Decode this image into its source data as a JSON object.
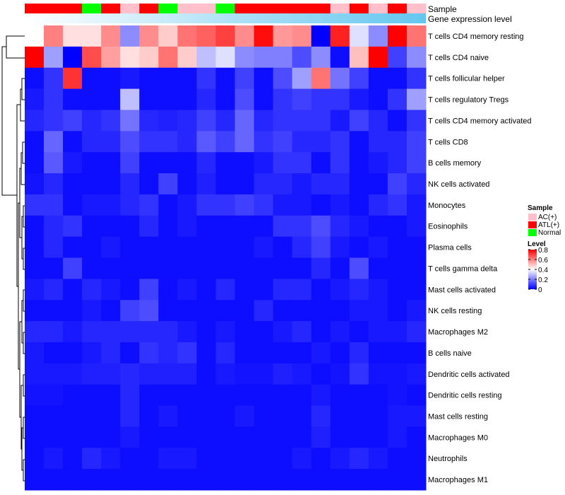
{
  "chart_data": {
    "type": "heatmap",
    "annotation_labels": {
      "sample": "Sample",
      "expression": "Gene expression level"
    },
    "sample_groups": [
      "ATL(+)",
      "ATL(+)",
      "ATL(+)",
      "Normal",
      "ATL(+)",
      "AC(+)",
      "ATL(+)",
      "Normal",
      "AC(+)",
      "AC(+)",
      "Normal",
      "ATL(+)",
      "ATL(+)",
      "ATL(+)",
      "ATL(+)",
      "ATL(+)",
      "AC(+)",
      "ATL(+)",
      "AC(+)",
      "ATL(+)",
      "AC(+)"
    ],
    "group_colors": {
      "AC(+)": "#FFC0CB",
      "ATL(+)": "#FF0000",
      "Normal": "#00FF00"
    },
    "expression_colors": {
      "start": "#FFFFFF",
      "end": "#63C6EF"
    },
    "rows": [
      {
        "label": "T cells CD4 memory resting",
        "values": [
          0.4,
          0.6,
          0.45,
          0.45,
          0.58,
          0.22,
          0.58,
          0.48,
          0.62,
          0.65,
          0.7,
          0.58,
          0.78,
          0.56,
          0.58,
          0.0,
          0.75,
          0.35,
          0.22,
          0.8,
          0.62
        ]
      },
      {
        "label": "T cells CD4 naive",
        "values": [
          0.8,
          0.25,
          0.0,
          0.68,
          0.55,
          0.45,
          0.48,
          0.62,
          0.48,
          0.3,
          0.35,
          0.22,
          0.2,
          0.2,
          0.12,
          0.22,
          0.02,
          0.5,
          0.8,
          0.1,
          0.22
        ]
      },
      {
        "label": "T cells follicular helper",
        "values": [
          0.02,
          0.08,
          0.72,
          0.02,
          0.02,
          0.04,
          0.02,
          0.02,
          0.02,
          0.08,
          0.02,
          0.1,
          0.02,
          0.12,
          0.25,
          0.62,
          0.18,
          0.1,
          0.02,
          0.02,
          0.08
        ]
      },
      {
        "label": "T cells regulatory  Tregs",
        "values": [
          0.04,
          0.08,
          0.02,
          0.02,
          0.02,
          0.3,
          0.02,
          0.02,
          0.02,
          0.06,
          0.02,
          0.12,
          0.02,
          0.08,
          0.1,
          0.08,
          0.08,
          0.04,
          0.02,
          0.08,
          0.25
        ]
      },
      {
        "label": "T cells CD4 memory activated",
        "values": [
          0.06,
          0.08,
          0.1,
          0.06,
          0.08,
          0.18,
          0.06,
          0.05,
          0.06,
          0.1,
          0.06,
          0.16,
          0.06,
          0.08,
          0.08,
          0.08,
          0.04,
          0.1,
          0.06,
          0.02,
          0.08
        ]
      },
      {
        "label": "T cells CD8",
        "values": [
          0.02,
          0.16,
          0.02,
          0.06,
          0.06,
          0.12,
          0.08,
          0.08,
          0.06,
          0.14,
          0.1,
          0.16,
          0.08,
          0.1,
          0.06,
          0.06,
          0.08,
          0.02,
          0.06,
          0.06,
          0.1
        ]
      },
      {
        "label": "B cells memory",
        "values": [
          0.02,
          0.14,
          0.04,
          0.02,
          0.02,
          0.1,
          0.02,
          0.02,
          0.02,
          0.06,
          0.02,
          0.02,
          0.04,
          0.08,
          0.08,
          0.02,
          0.08,
          0.02,
          0.04,
          0.06,
          0.1
        ]
      },
      {
        "label": "NK cells activated",
        "values": [
          0.03,
          0.06,
          0.02,
          0.02,
          0.02,
          0.06,
          0.02,
          0.1,
          0.02,
          0.05,
          0.02,
          0.02,
          0.06,
          0.06,
          0.04,
          0.06,
          0.06,
          0.02,
          0.02,
          0.1,
          0.06
        ]
      },
      {
        "label": "Monocytes",
        "values": [
          0.08,
          0.08,
          0.02,
          0.04,
          0.04,
          0.06,
          0.08,
          0.02,
          0.04,
          0.08,
          0.08,
          0.1,
          0.08,
          0.04,
          0.04,
          0.02,
          0.04,
          0.02,
          0.06,
          0.08,
          0.04
        ]
      },
      {
        "label": "Eosinophils",
        "values": [
          0.02,
          0.06,
          0.08,
          0.02,
          0.02,
          0.02,
          0.06,
          0.02,
          0.04,
          0.02,
          0.02,
          0.02,
          0.02,
          0.08,
          0.08,
          0.12,
          0.06,
          0.04,
          0.02,
          0.02,
          0.04
        ]
      },
      {
        "label": "Plasma cells",
        "values": [
          0.02,
          0.06,
          0.02,
          0.02,
          0.04,
          0.02,
          0.02,
          0.02,
          0.02,
          0.02,
          0.02,
          0.02,
          0.04,
          0.02,
          0.06,
          0.1,
          0.04,
          0.02,
          0.04,
          0.02,
          0.02
        ]
      },
      {
        "label": "T cells gamma delta",
        "values": [
          0.02,
          0.02,
          0.1,
          0.02,
          0.02,
          0.02,
          0.02,
          0.02,
          0.02,
          0.02,
          0.02,
          0.02,
          0.02,
          0.02,
          0.02,
          0.06,
          0.02,
          0.12,
          0.02,
          0.02,
          0.02
        ]
      },
      {
        "label": "Mast cells activated",
        "values": [
          0.04,
          0.06,
          0.02,
          0.06,
          0.04,
          0.02,
          0.1,
          0.02,
          0.04,
          0.02,
          0.06,
          0.02,
          0.02,
          0.06,
          0.06,
          0.02,
          0.04,
          0.06,
          0.04,
          0.02,
          0.02
        ]
      },
      {
        "label": "NK cells resting",
        "values": [
          0.02,
          0.02,
          0.02,
          0.04,
          0.02,
          0.1,
          0.12,
          0.02,
          0.02,
          0.02,
          0.02,
          0.02,
          0.06,
          0.02,
          0.02,
          0.02,
          0.02,
          0.04,
          0.04,
          0.02,
          0.04
        ]
      },
      {
        "label": "Macrophages M2",
        "values": [
          0.06,
          0.06,
          0.04,
          0.06,
          0.06,
          0.06,
          0.06,
          0.06,
          0.04,
          0.02,
          0.04,
          0.02,
          0.02,
          0.04,
          0.06,
          0.02,
          0.04,
          0.02,
          0.04,
          0.04,
          0.06
        ]
      },
      {
        "label": "B cells naive",
        "values": [
          0.04,
          0.02,
          0.02,
          0.04,
          0.06,
          0.02,
          0.08,
          0.06,
          0.08,
          0.02,
          0.06,
          0.02,
          0.02,
          0.02,
          0.02,
          0.04,
          0.02,
          0.06,
          0.02,
          0.02,
          0.02
        ]
      },
      {
        "label": "Dendritic cells activated",
        "values": [
          0.04,
          0.04,
          0.04,
          0.05,
          0.05,
          0.06,
          0.05,
          0.05,
          0.05,
          0.02,
          0.04,
          0.03,
          0.03,
          0.05,
          0.04,
          0.02,
          0.03,
          0.08,
          0.03,
          0.03,
          0.04
        ]
      },
      {
        "label": "Dendritic cells resting",
        "values": [
          0.03,
          0.03,
          0.02,
          0.02,
          0.02,
          0.06,
          0.02,
          0.02,
          0.02,
          0.02,
          0.02,
          0.02,
          0.02,
          0.02,
          0.02,
          0.04,
          0.02,
          0.02,
          0.02,
          0.03,
          0.02
        ]
      },
      {
        "label": "Mast cells resting",
        "values": [
          0.02,
          0.02,
          0.02,
          0.02,
          0.02,
          0.06,
          0.02,
          0.04,
          0.02,
          0.02,
          0.02,
          0.04,
          0.02,
          0.02,
          0.02,
          0.06,
          0.02,
          0.02,
          0.02,
          0.04,
          0.04
        ]
      },
      {
        "label": "Macrophages M0",
        "values": [
          0.02,
          0.02,
          0.02,
          0.02,
          0.02,
          0.04,
          0.02,
          0.02,
          0.02,
          0.02,
          0.02,
          0.02,
          0.02,
          0.02,
          0.02,
          0.05,
          0.02,
          0.02,
          0.02,
          0.04,
          0.02
        ]
      },
      {
        "label": "Neutrophils",
        "values": [
          0.02,
          0.04,
          0.02,
          0.06,
          0.04,
          0.02,
          0.02,
          0.04,
          0.04,
          0.02,
          0.02,
          0.02,
          0.02,
          0.02,
          0.04,
          0.02,
          0.04,
          0.06,
          0.04,
          0.02,
          0.02
        ]
      },
      {
        "label": "Macrophages M1",
        "values": [
          0.02,
          0.02,
          0.02,
          0.02,
          0.02,
          0.02,
          0.02,
          0.02,
          0.02,
          0.02,
          0.02,
          0.02,
          0.02,
          0.02,
          0.02,
          0.02,
          0.02,
          0.02,
          0.02,
          0.02,
          0.02
        ]
      }
    ],
    "legend": {
      "sample_title": "Sample",
      "sample_entries": [
        "AC(+)",
        "ATL(+)",
        "Normal"
      ],
      "level_title": "Level",
      "level_ticks": [
        0.8,
        0.6,
        0.4,
        0.2,
        0
      ],
      "level_tick_labels": [
        "0.8",
        "0.6",
        "0.4",
        "0.2",
        "0"
      ],
      "range": [
        0,
        0.8
      ],
      "color_low": "#0000FF",
      "color_mid": "#FFFFFF",
      "color_high": "#FF0000"
    }
  }
}
